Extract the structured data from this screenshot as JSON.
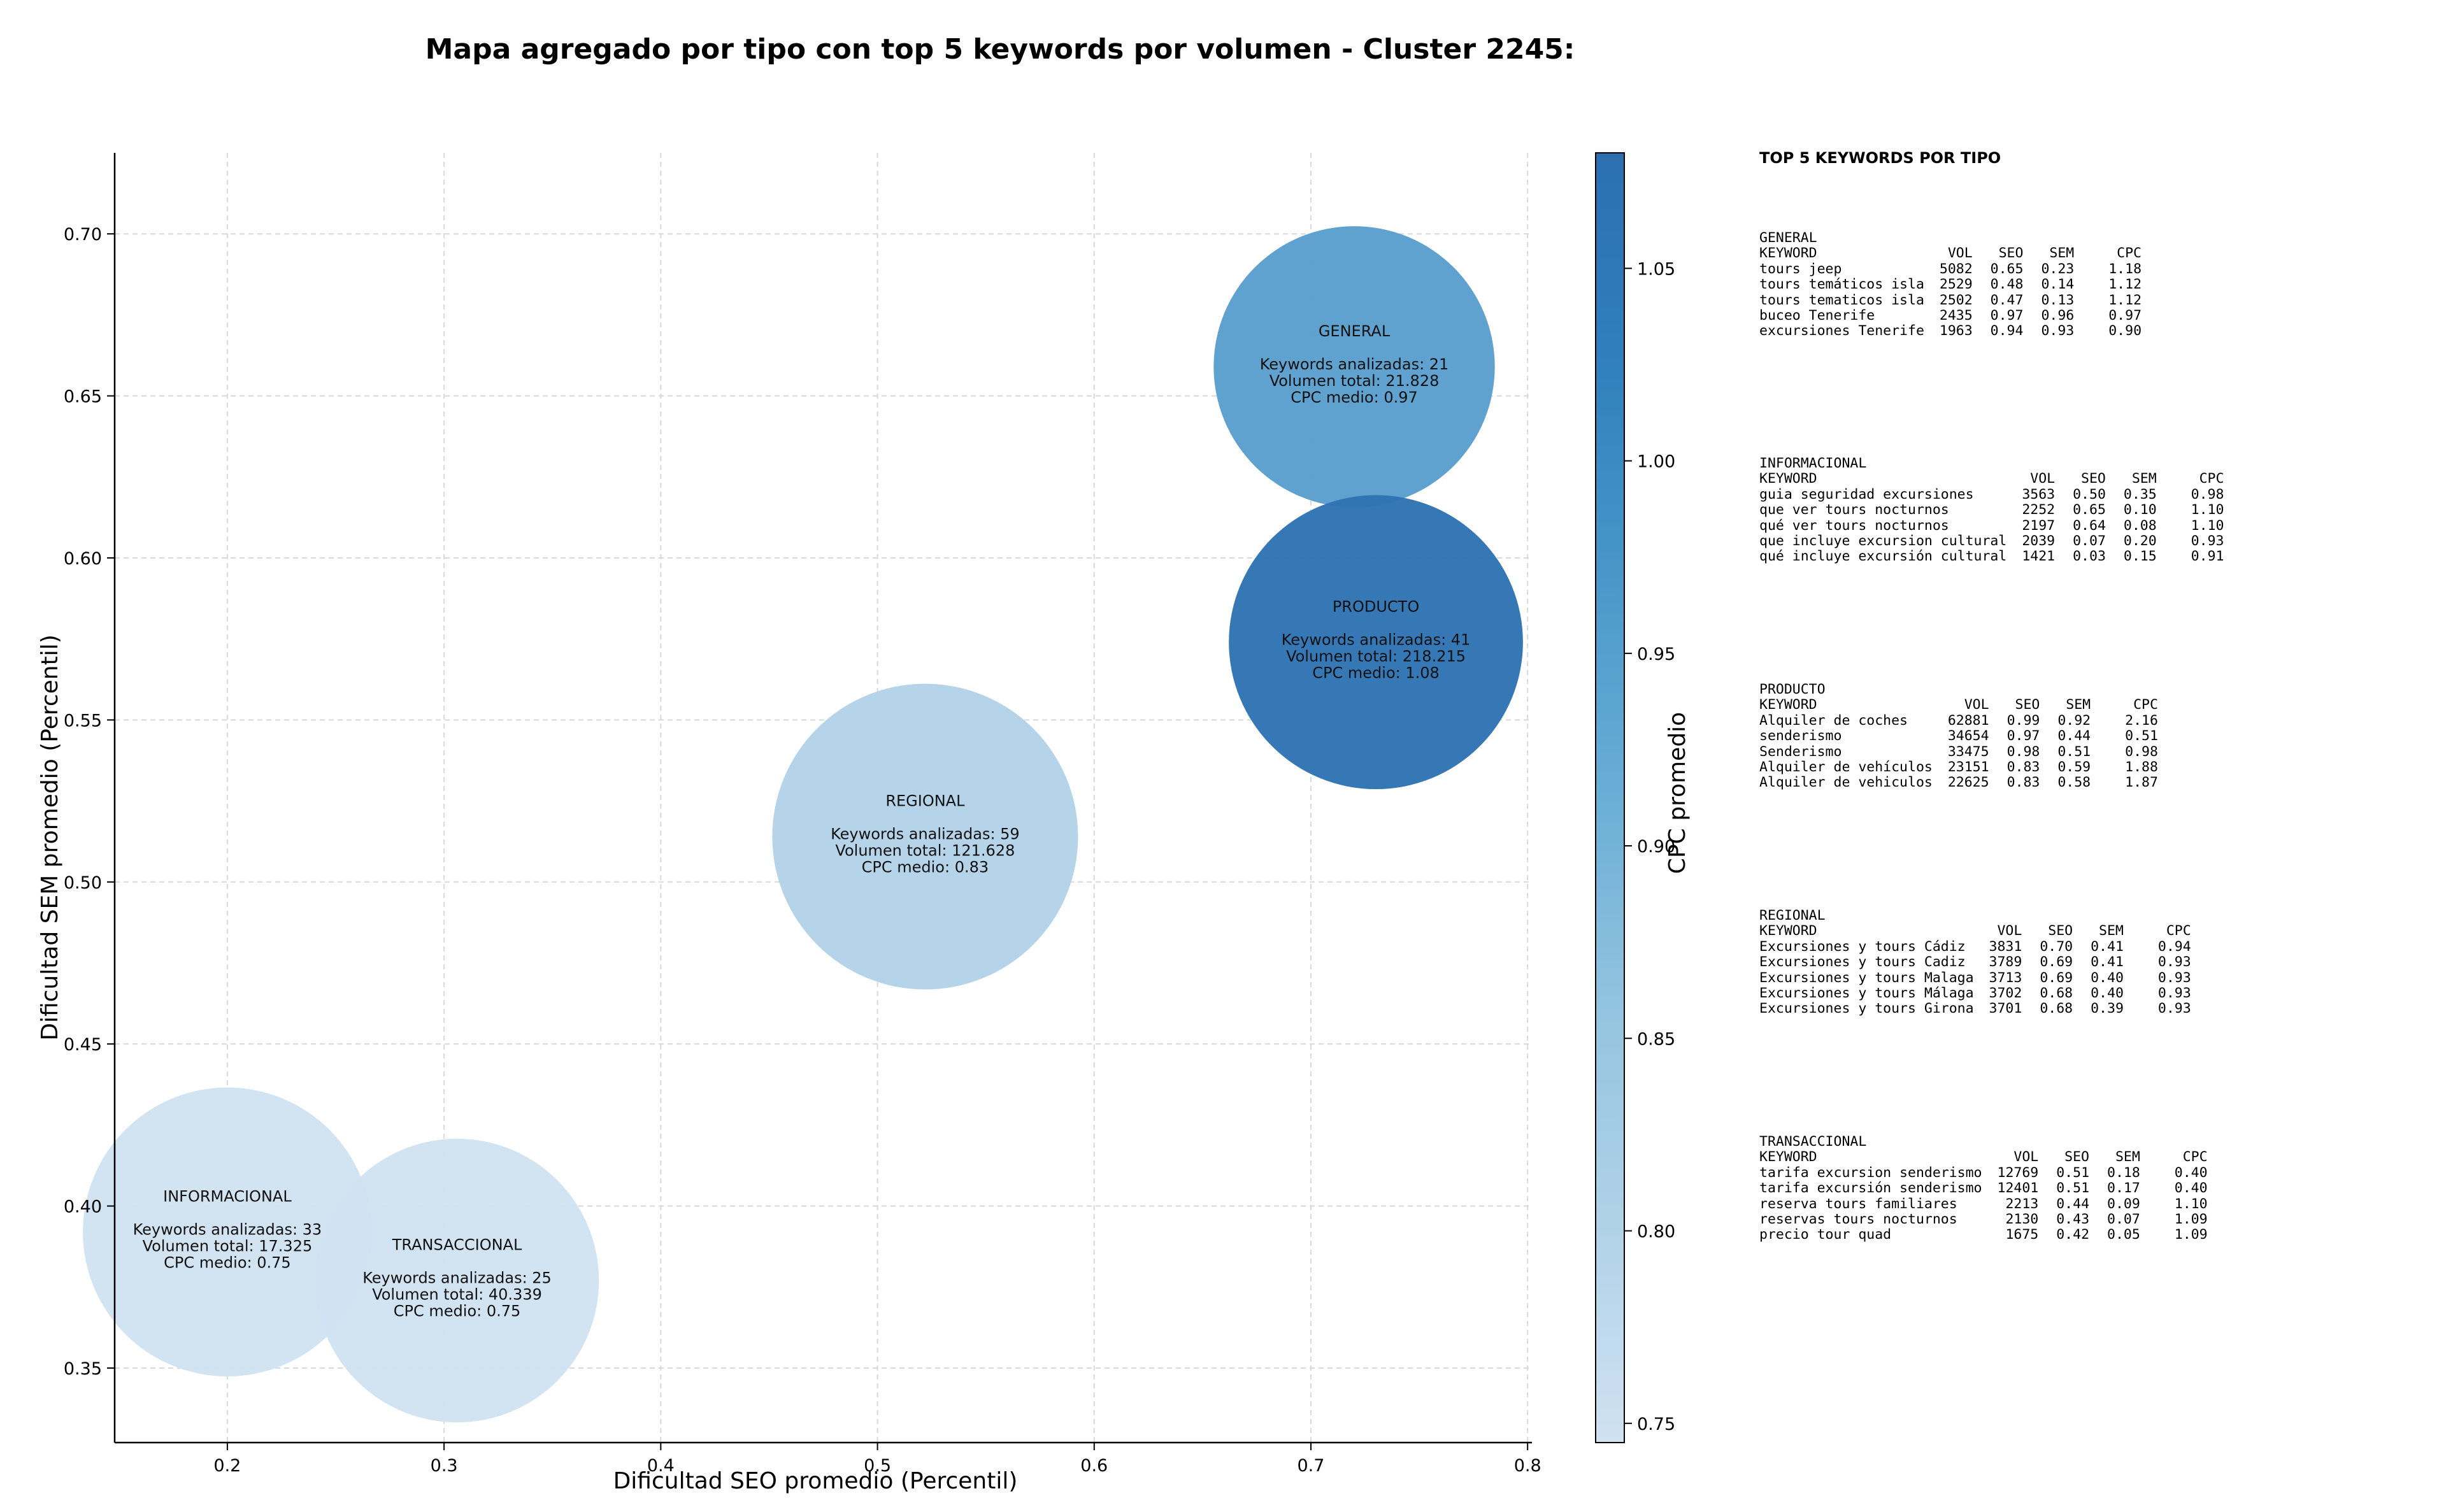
{
  "title": "Mapa agregado por tipo con top 5 keywords por volumen - Cluster 2245:",
  "chart_data": {
    "type": "scatter",
    "xlabel": "Dificultad SEO promedio (Percentil)",
    "ylabel": "Dificultad SEM promedio (Percentil)",
    "xlim": [
      0.148,
      0.802
    ],
    "ylim": [
      0.327,
      0.725
    ],
    "xticks": [
      0.2,
      0.3,
      0.4,
      0.5,
      0.6,
      0.7,
      0.8
    ],
    "xtick_labels": [
      "0.2",
      "0.3",
      "0.4",
      "0.5",
      "0.6",
      "0.7",
      "0.8"
    ],
    "yticks": [
      0.35,
      0.4,
      0.45,
      0.5,
      0.55,
      0.6,
      0.65,
      0.7
    ],
    "ytick_labels": [
      "0.35",
      "0.40",
      "0.45",
      "0.50",
      "0.55",
      "0.60",
      "0.65",
      "0.70"
    ],
    "grid": true,
    "colorbar": {
      "label": "CPC promedio",
      "range": [
        0.745,
        1.08
      ],
      "ticks": [
        0.75,
        0.8,
        0.85,
        0.9,
        0.95,
        1.0,
        1.05
      ],
      "tick_labels": [
        "0.75",
        "0.80",
        "0.85",
        "0.90",
        "0.95",
        "1.00",
        "1.05"
      ],
      "colors": [
        "#d0e1f2",
        "#b0d2e8",
        "#94c4df",
        "#6aaed6",
        "#4a98c9",
        "#3080bd",
        "#2c6fb0"
      ]
    },
    "points": [
      {
        "name": "GENERAL",
        "x": 0.72,
        "y": 0.659,
        "keywords": 21,
        "volume": 21828,
        "cpc": 0.97,
        "line_kw": "Keywords analizadas: 21",
        "line_vol": "Volumen total: 21.828",
        "line_cpc": "CPC medio: 0.97",
        "color": "#5a9fcd"
      },
      {
        "name": "PRODUCTO",
        "x": 0.73,
        "y": 0.574,
        "keywords": 41,
        "volume": 218215,
        "cpc": 1.08,
        "line_kw": "Keywords analizadas: 41",
        "line_vol": "Volumen total: 218.215",
        "line_cpc": "CPC medio: 1.08",
        "color": "#2f74b4"
      },
      {
        "name": "REGIONAL",
        "x": 0.522,
        "y": 0.514,
        "keywords": 59,
        "volume": 121628,
        "cpc": 0.83,
        "line_kw": "Keywords analizadas: 59",
        "line_vol": "Volumen total: 121.628",
        "line_cpc": "CPC medio: 0.83",
        "color": "#b3d3e8"
      },
      {
        "name": "INFORMACIONAL",
        "x": 0.2,
        "y": 0.392,
        "keywords": 33,
        "volume": 17325,
        "cpc": 0.75,
        "line_kw": "Keywords analizadas: 33",
        "line_vol": "Volumen total: 17.325",
        "line_cpc": "CPC medio: 0.75",
        "color": "#d1e2f2"
      },
      {
        "name": "TRANSACCIONAL",
        "x": 0.306,
        "y": 0.377,
        "keywords": 25,
        "volume": 40339,
        "cpc": 0.75,
        "line_kw": "Keywords analizadas: 25",
        "line_vol": "Volumen total: 40.339",
        "line_cpc": "CPC medio: 0.75",
        "color": "#d1e2f2"
      }
    ]
  },
  "side_panel": {
    "title": "TOP 5 KEYWORDS POR TIPO",
    "headers": {
      "keyword": "KEYWORD",
      "vol": "VOL",
      "seo": "SEO",
      "sem": "SEM",
      "cpc": "CPC"
    },
    "groups": [
      {
        "name": "GENERAL",
        "rows": [
          [
            "tours jeep",
            "5082",
            "0.65",
            "0.23",
            "1.18"
          ],
          [
            "tours temáticos isla",
            "2529",
            "0.48",
            "0.14",
            "1.12"
          ],
          [
            "tours tematicos isla",
            "2502",
            "0.47",
            "0.13",
            "1.12"
          ],
          [
            "buceo Tenerife",
            "2435",
            "0.97",
            "0.96",
            "0.97"
          ],
          [
            "excursiones Tenerife",
            "1963",
            "0.94",
            "0.93",
            "0.90"
          ]
        ]
      },
      {
        "name": "INFORMACIONAL",
        "rows": [
          [
            "guia seguridad excursiones",
            "3563",
            "0.50",
            "0.35",
            "0.98"
          ],
          [
            "que ver tours nocturnos",
            "2252",
            "0.65",
            "0.10",
            "1.10"
          ],
          [
            "qué ver tours nocturnos",
            "2197",
            "0.64",
            "0.08",
            "1.10"
          ],
          [
            "que incluye excursion cultural",
            "2039",
            "0.07",
            "0.20",
            "0.93"
          ],
          [
            "qué incluye excursión cultural",
            "1421",
            "0.03",
            "0.15",
            "0.91"
          ]
        ]
      },
      {
        "name": "PRODUCTO",
        "rows": [
          [
            "Alquiler de coches",
            "62881",
            "0.99",
            "0.92",
            "2.16"
          ],
          [
            "senderismo",
            "34654",
            "0.97",
            "0.44",
            "0.51"
          ],
          [
            "Senderismo",
            "33475",
            "0.98",
            "0.51",
            "0.98"
          ],
          [
            "Alquiler de vehículos",
            "23151",
            "0.83",
            "0.59",
            "1.88"
          ],
          [
            "Alquiler de vehiculos",
            "22625",
            "0.83",
            "0.58",
            "1.87"
          ]
        ]
      },
      {
        "name": "REGIONAL",
        "rows": [
          [
            "Excursiones y tours Cádiz",
            "3831",
            "0.70",
            "0.41",
            "0.94"
          ],
          [
            "Excursiones y tours Cadiz",
            "3789",
            "0.69",
            "0.41",
            "0.93"
          ],
          [
            "Excursiones y tours Malaga",
            "3713",
            "0.69",
            "0.40",
            "0.93"
          ],
          [
            "Excursiones y tours Málaga",
            "3702",
            "0.68",
            "0.40",
            "0.93"
          ],
          [
            "Excursiones y tours Girona",
            "3701",
            "0.68",
            "0.39",
            "0.93"
          ]
        ]
      },
      {
        "name": "TRANSACCIONAL",
        "rows": [
          [
            "tarifa excursion senderismo",
            "12769",
            "0.51",
            "0.18",
            "0.40"
          ],
          [
            "tarifa excursión senderismo",
            "12401",
            "0.51",
            "0.17",
            "0.40"
          ],
          [
            "reserva tours familiares",
            "2213",
            "0.44",
            "0.09",
            "1.10"
          ],
          [
            "reservas tours nocturnos",
            "2130",
            "0.43",
            "0.07",
            "1.09"
          ],
          [
            "precio tour quad",
            "1675",
            "0.42",
            "0.05",
            "1.09"
          ]
        ]
      }
    ]
  }
}
